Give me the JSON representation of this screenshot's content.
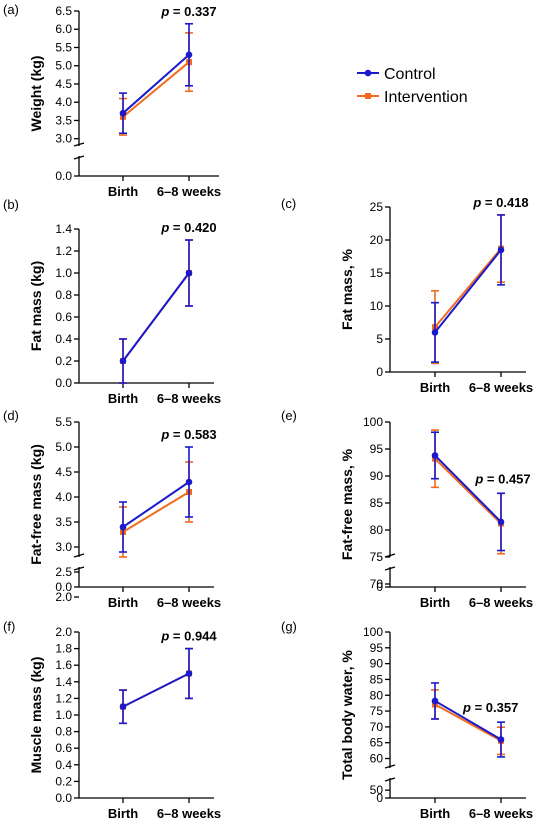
{
  "colors": {
    "control": "#1a1acc",
    "intervention": "#f26b1d"
  },
  "legend": {
    "control": "Control",
    "intervention": "Intervention"
  },
  "chart_data": [
    {
      "panel": "(a)",
      "type": "line",
      "ylabel": "Weight (kg)",
      "categories": [
        "Birth",
        "6–8 weeks"
      ],
      "ylim": [
        0,
        6.5
      ],
      "axis_break": [
        0.5,
        2.8
      ],
      "yticks": [
        0.0,
        3.0,
        3.5,
        4.0,
        4.5,
        5.0,
        5.5,
        6.0,
        6.5
      ],
      "ytick_labels": [
        "0.0",
        "3.0",
        "3.5",
        "4.0",
        "4.5",
        "5.0",
        "5.5",
        "6.0",
        "6.5"
      ],
      "p_value": {
        "prefix": "p",
        "text": " = 0.337",
        "over": 1
      },
      "series": [
        {
          "key": "control",
          "values": [
            3.7,
            5.3
          ],
          "err": [
            0.55,
            0.85
          ]
        },
        {
          "key": "intervention",
          "values": [
            3.6,
            5.1
          ],
          "err": [
            0.5,
            0.8
          ]
        }
      ]
    },
    {
      "panel": "(b)",
      "type": "line",
      "ylabel": "Fat mass (kg)",
      "categories": [
        "Birth",
        "6–8 weeks"
      ],
      "ylim": [
        0,
        1.4
      ],
      "yticks": [
        0.0,
        0.2,
        0.4,
        0.6,
        0.8,
        1.0,
        1.2,
        1.4
      ],
      "ytick_labels": [
        "0.0",
        "0.2",
        "0.4",
        "0.6",
        "0.8",
        "1.0",
        "1.2",
        "1.4"
      ],
      "p_value": {
        "prefix": "p",
        "text": " = 0.420",
        "over": 1
      },
      "series": [
        {
          "key": "control",
          "values": [
            0.2,
            1.0
          ],
          "err": [
            0.2,
            0.3
          ]
        },
        {
          "key": "intervention",
          "values": [
            0.2,
            1.0
          ],
          "err": [
            0.2,
            0.3
          ]
        }
      ]
    },
    {
      "panel": "(c)",
      "type": "line",
      "ylabel": "Fat mass, %",
      "categories": [
        "Birth",
        "6–8 weeks"
      ],
      "ylim": [
        0,
        25
      ],
      "yticks": [
        0,
        5,
        10,
        15,
        20,
        25
      ],
      "ytick_labels": [
        "0",
        "5",
        "10",
        "15",
        "20",
        "25"
      ],
      "p_value": {
        "prefix": "p",
        "text": " = 0.418",
        "over": 1
      },
      "series": [
        {
          "key": "control",
          "values": [
            6,
            18.5
          ],
          "err": [
            4.5,
            5.3
          ]
        },
        {
          "key": "intervention",
          "values": [
            6.8,
            18.7
          ],
          "err": [
            5.5,
            5.1
          ]
        }
      ]
    },
    {
      "panel": "(d)",
      "type": "line",
      "ylabel": "Fat-free mass (kg)",
      "categories": [
        "Birth",
        "6–8 weeks"
      ],
      "ylim": [
        0,
        5.5
      ],
      "axis_break": [
        0.5,
        2.8
      ],
      "yticks": [
        0.0,
        2.0,
        2.5,
        3.0,
        3.5,
        4.0,
        4.5,
        5.0,
        5.5
      ],
      "ytick_labels": [
        "0.0",
        "2.0",
        "2.5",
        "3.0",
        "3.5",
        "4.0",
        "4.5",
        "5.0",
        "5.5"
      ],
      "p_value": {
        "prefix": "p",
        "text": " = 0.583",
        "over": 1
      },
      "series": [
        {
          "key": "control",
          "values": [
            3.4,
            4.3
          ],
          "err": [
            0.5,
            0.7
          ]
        },
        {
          "key": "intervention",
          "values": [
            3.3,
            4.1
          ],
          "err": [
            0.5,
            0.6
          ]
        }
      ]
    },
    {
      "panel": "(e)",
      "type": "line",
      "ylabel": "Fat-free mass, %",
      "categories": [
        "Birth",
        "6–8 weeks"
      ],
      "ylim": [
        0,
        100
      ],
      "axis_break": [
        20,
        75
      ],
      "yticks": [
        0,
        70,
        75,
        80,
        85,
        90,
        95,
        100
      ],
      "ytick_labels": [
        "0",
        "70",
        "75",
        "80",
        "85",
        "90",
        "95",
        "100"
      ],
      "p_value": {
        "prefix": "p",
        "text": " = 0.457",
        "over": 0
      },
      "series": [
        {
          "key": "control",
          "values": [
            93.8,
            81.5
          ],
          "err": [
            4.3,
            5.3
          ]
        },
        {
          "key": "intervention",
          "values": [
            93.2,
            81.2
          ],
          "err": [
            5.3,
            5.6
          ]
        }
      ]
    },
    {
      "panel": "(f)",
      "type": "line",
      "ylabel": "Muscle mass (kg)",
      "categories": [
        "Birth",
        "6–8 weeks"
      ],
      "ylim": [
        0,
        2.0
      ],
      "yticks": [
        0.0,
        0.2,
        0.4,
        0.6,
        0.8,
        1.0,
        1.2,
        1.4,
        1.6,
        1.8,
        2.0
      ],
      "ytick_labels": [
        "0.0",
        "0.2",
        "0.4",
        "0.6",
        "0.8",
        "1.0",
        "1.2",
        "1.4",
        "1.6",
        "1.8",
        "2.0"
      ],
      "p_value": {
        "prefix": "p",
        "text": " = 0.944",
        "over": 1
      },
      "series": [
        {
          "key": "control",
          "values": [
            1.1,
            1.5
          ],
          "err": [
            0.2,
            0.3
          ]
        },
        {
          "key": "intervention",
          "values": [
            1.1,
            1.5
          ],
          "err": [
            0.2,
            0.3
          ]
        }
      ]
    },
    {
      "panel": "(g)",
      "type": "line",
      "ylabel": "Total body water, %",
      "categories": [
        "Birth",
        "6–8 weeks"
      ],
      "ylim": [
        0,
        100
      ],
      "axis_break": [
        5,
        57
      ],
      "yticks": [
        0,
        50,
        60,
        65,
        70,
        75,
        80,
        85,
        90,
        95,
        100
      ],
      "ytick_labels": [
        "0",
        "50",
        "60",
        "65",
        "70",
        "75",
        "80",
        "85",
        "90",
        "95",
        "100"
      ],
      "p_value": {
        "prefix": "p",
        "text": " = 0.357",
        "over": 1,
        "side": "right"
      },
      "series": [
        {
          "key": "control",
          "values": [
            78.2,
            66.0
          ],
          "err": [
            5.7,
            5.5
          ]
        },
        {
          "key": "intervention",
          "values": [
            77.1,
            65.6
          ],
          "err": [
            4.6,
            4.3
          ]
        }
      ]
    }
  ]
}
